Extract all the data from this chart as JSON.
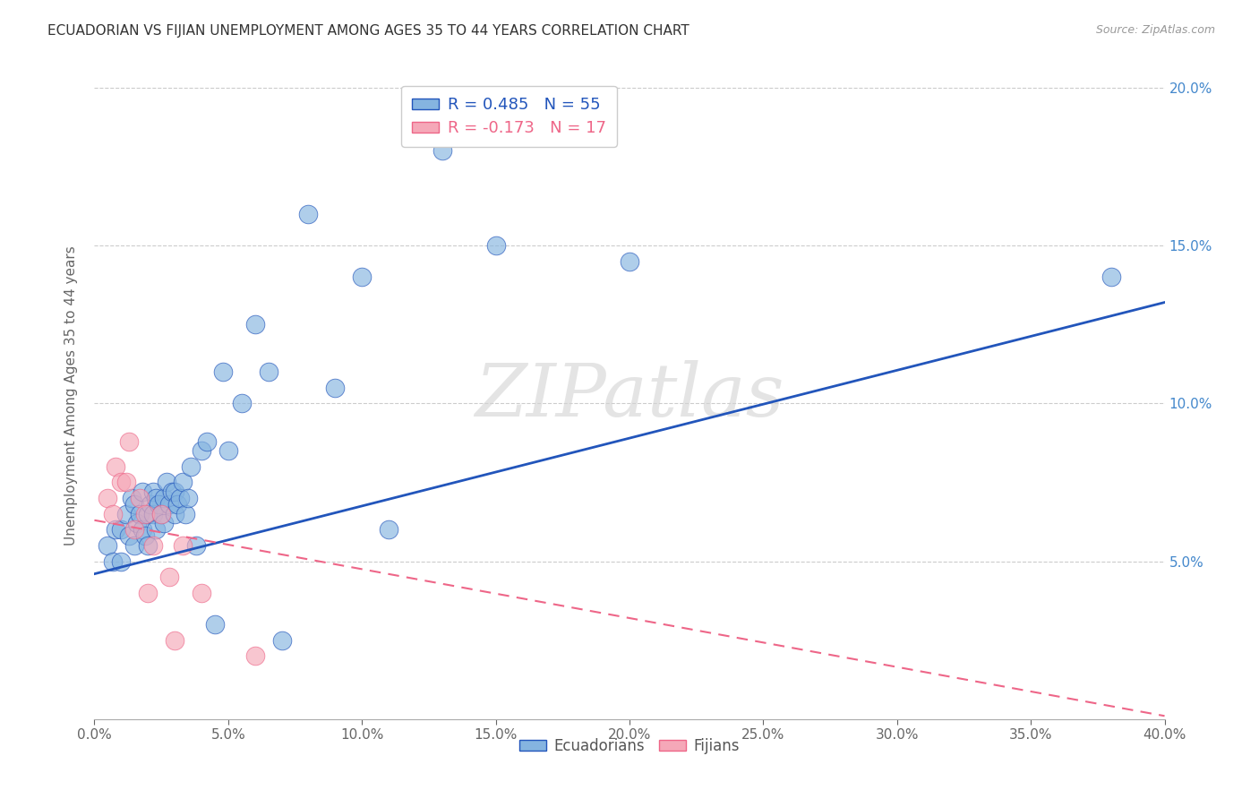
{
  "title": "ECUADORIAN VS FIJIAN UNEMPLOYMENT AMONG AGES 35 TO 44 YEARS CORRELATION CHART",
  "source": "Source: ZipAtlas.com",
  "ylabel": "Unemployment Among Ages 35 to 44 years",
  "xlim": [
    0.0,
    0.4
  ],
  "ylim": [
    0.0,
    0.205
  ],
  "watermark": "ZIPatlas",
  "legend1_label": "R = 0.485   N = 55",
  "legend2_label": "R = -0.173   N = 17",
  "blue_color": "#85B4E0",
  "pink_color": "#F5A8B8",
  "blue_line_color": "#2255BB",
  "pink_line_color": "#EE6688",
  "ecuadorian_x": [
    0.005,
    0.007,
    0.008,
    0.01,
    0.01,
    0.012,
    0.013,
    0.014,
    0.015,
    0.015,
    0.016,
    0.017,
    0.018,
    0.018,
    0.019,
    0.02,
    0.02,
    0.021,
    0.022,
    0.022,
    0.023,
    0.023,
    0.024,
    0.025,
    0.026,
    0.026,
    0.027,
    0.028,
    0.029,
    0.03,
    0.03,
    0.031,
    0.032,
    0.033,
    0.034,
    0.035,
    0.036,
    0.038,
    0.04,
    0.042,
    0.045,
    0.048,
    0.05,
    0.055,
    0.06,
    0.065,
    0.07,
    0.08,
    0.09,
    0.1,
    0.11,
    0.13,
    0.15,
    0.2,
    0.38
  ],
  "ecuadorian_y": [
    0.055,
    0.05,
    0.06,
    0.06,
    0.05,
    0.065,
    0.058,
    0.07,
    0.068,
    0.055,
    0.062,
    0.065,
    0.06,
    0.072,
    0.058,
    0.065,
    0.055,
    0.068,
    0.065,
    0.072,
    0.06,
    0.07,
    0.068,
    0.065,
    0.07,
    0.062,
    0.075,
    0.068,
    0.072,
    0.065,
    0.072,
    0.068,
    0.07,
    0.075,
    0.065,
    0.07,
    0.08,
    0.055,
    0.085,
    0.088,
    0.03,
    0.11,
    0.085,
    0.1,
    0.125,
    0.11,
    0.025,
    0.16,
    0.105,
    0.14,
    0.06,
    0.18,
    0.15,
    0.145,
    0.14
  ],
  "fijian_x": [
    0.005,
    0.007,
    0.008,
    0.01,
    0.012,
    0.013,
    0.015,
    0.017,
    0.019,
    0.02,
    0.022,
    0.025,
    0.028,
    0.03,
    0.033,
    0.04,
    0.06
  ],
  "fijian_y": [
    0.07,
    0.065,
    0.08,
    0.075,
    0.075,
    0.088,
    0.06,
    0.07,
    0.065,
    0.04,
    0.055,
    0.065,
    0.045,
    0.025,
    0.055,
    0.04,
    0.02
  ],
  "blue_intercept": 0.046,
  "blue_slope": 0.215,
  "pink_intercept": 0.063,
  "pink_slope": -0.155,
  "xtick_vals": [
    0.0,
    0.05,
    0.1,
    0.15,
    0.2,
    0.25,
    0.3,
    0.35,
    0.4
  ],
  "xtick_labels": [
    "0.0%",
    "5.0%",
    "10.0%",
    "15.0%",
    "20.0%",
    "25.0%",
    "30.0%",
    "35.0%",
    "40.0%"
  ],
  "ytick_vals": [
    0.05,
    0.1,
    0.15,
    0.2
  ],
  "ytick_labels": [
    "5.0%",
    "10.0%",
    "15.0%",
    "20.0%"
  ]
}
